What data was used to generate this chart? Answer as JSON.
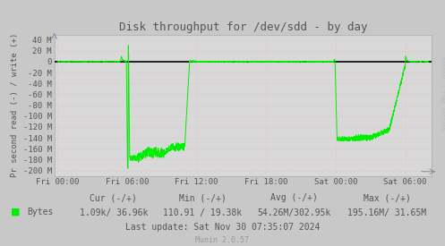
{
  "title": "Disk throughput for /dev/sdd - by day",
  "ylabel": "Pr second read (-) / write (+)",
  "ylim": [
    -210000000,
    50000000
  ],
  "yticks": [
    -200000000,
    -180000000,
    -160000000,
    -140000000,
    -120000000,
    -100000000,
    -80000000,
    -60000000,
    -40000000,
    -20000000,
    0,
    20000000,
    40000000
  ],
  "ytick_labels": [
    "-200 M",
    "-180 M",
    "-160 M",
    "-140 M",
    "-120 M",
    "-100 M",
    "-80 M",
    "-60 M",
    "-40 M",
    "-20 M",
    "0",
    "20 M",
    "40 M"
  ],
  "xtick_labels": [
    "Fri 00:00",
    "Fri 06:00",
    "Fri 12:00",
    "Fri 18:00",
    "Sat 00:00",
    "Sat 06:00"
  ],
  "xtick_positions": [
    0,
    21600,
    43200,
    64800,
    86400,
    108000
  ],
  "xlim": [
    -1000,
    116200
  ],
  "bg_color": "#c8c8c8",
  "plot_bg_color": "#d8d8d8",
  "grid_color": "#ff9999",
  "line_color": "#00ee00",
  "zero_line_color": "#000000",
  "legend_label": "Bytes",
  "cur_neg": "1.09k",
  "cur_pos": "36.96k",
  "min_neg": "110.91",
  "min_pos": "19.38k",
  "avg_neg": "54.26M",
  "avg_pos": "302.95k",
  "max_neg": "195.16M",
  "max_pos": "31.65M",
  "last_update": "Last update: Sat Nov 30 07:35:07 2024",
  "munin_version": "Munin 2.0.57",
  "rrdtool_label": "RRDTOOL / TOBI OETIKER",
  "text_color": "#555555",
  "rrd_color": "#bbbbbb"
}
